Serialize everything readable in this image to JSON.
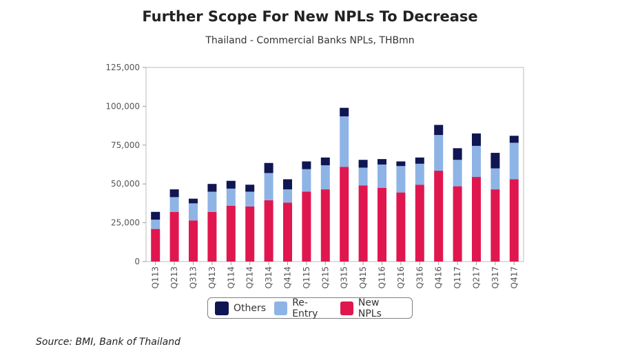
{
  "chart_data": {
    "type": "bar",
    "stacked": true,
    "title": "Further Scope For New NPLs To Decrease",
    "subtitle": "Thailand - Commercial Banks NPLs, THBmn",
    "categories": [
      "Q113",
      "Q213",
      "Q313",
      "Q413",
      "Q114",
      "Q214",
      "Q314",
      "Q414",
      "Q115",
      "Q215",
      "Q315",
      "Q415",
      "Q116",
      "Q216",
      "Q316",
      "Q416",
      "Q117",
      "Q217",
      "Q317",
      "Q417"
    ],
    "series": [
      {
        "name": "New NPLs",
        "color": "#e0174f",
        "values": [
          21000,
          32000,
          26500,
          32000,
          36000,
          35500,
          39500,
          38000,
          45000,
          46500,
          61000,
          49000,
          47500,
          44500,
          49500,
          58500,
          48500,
          54500,
          46500,
          53000
        ]
      },
      {
        "name": "Re-Entry",
        "color": "#8eb4e6",
        "values": [
          6000,
          9500,
          11000,
          13000,
          11000,
          9500,
          17500,
          8500,
          14500,
          15500,
          32500,
          11500,
          15000,
          17000,
          13500,
          23000,
          17000,
          20000,
          13500,
          23500
        ]
      },
      {
        "name": "Others",
        "color": "#101651",
        "values": [
          5000,
          5000,
          3000,
          5000,
          5000,
          4500,
          6500,
          6500,
          5000,
          5000,
          5500,
          5000,
          3500,
          3000,
          4000,
          6500,
          7500,
          8000,
          10000,
          4500
        ]
      }
    ],
    "yticks": [
      "0",
      "25,000",
      "50,000",
      "75,000",
      "100,000",
      "125,000"
    ],
    "ylim": [
      0,
      125000
    ],
    "legend_order": [
      "Others",
      "Re-Entry",
      "New NPLs"
    ],
    "legend_position": "bottom"
  },
  "source": "Source: BMI, Bank of Thailand"
}
